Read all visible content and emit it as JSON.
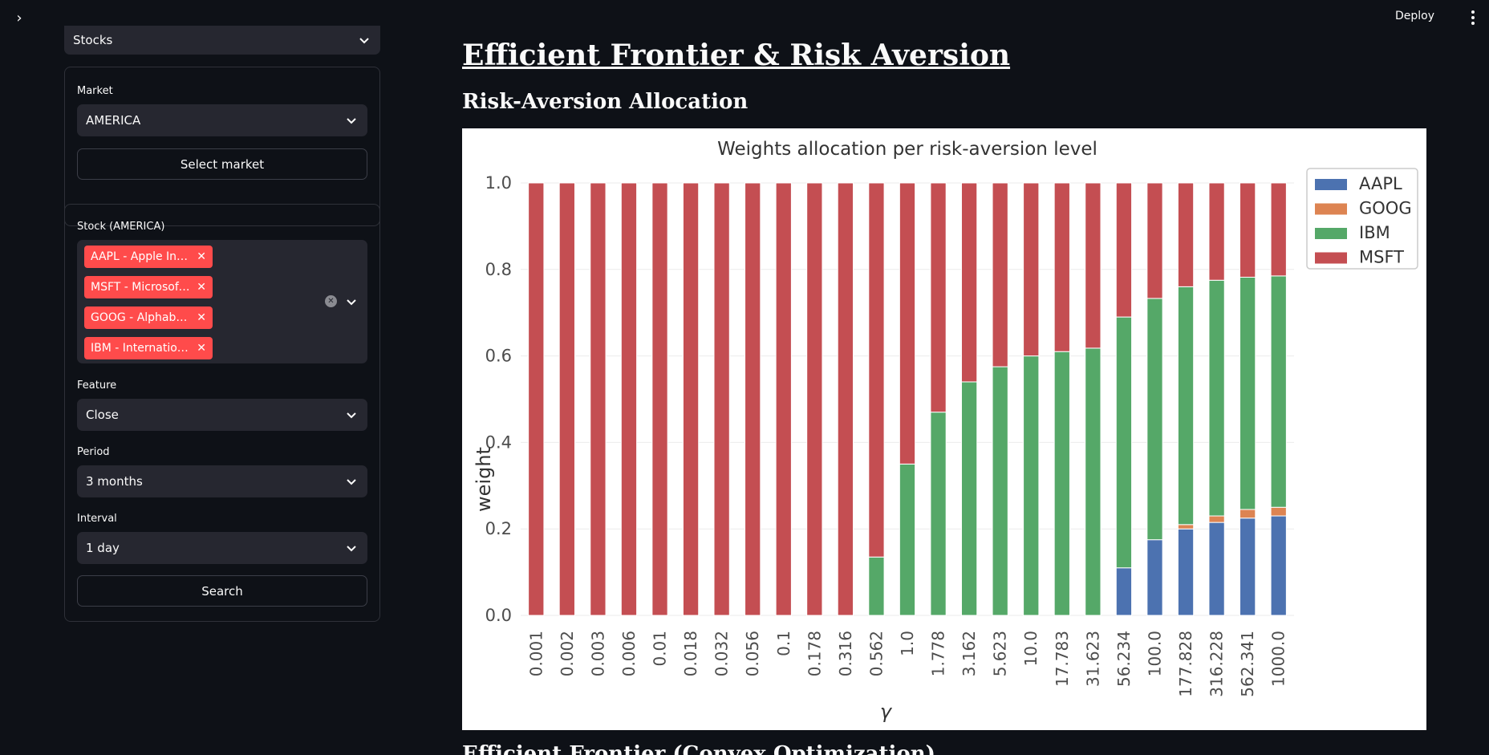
{
  "header": {
    "deploy_label": "Deploy"
  },
  "sidebar": {
    "category_select": {
      "value": "Stocks"
    },
    "market": {
      "label": "Market",
      "value": "AMERICA",
      "button": "Select market"
    },
    "stock": {
      "label": "Stock (AMERICA)",
      "tags": [
        "AAPL - Apple Inc.…",
        "MSFT - Microsoft…",
        "GOOG - Alphabe…",
        "IBM - Internation…"
      ]
    },
    "feature": {
      "label": "Feature",
      "value": "Close"
    },
    "period": {
      "label": "Period",
      "value": "3 months"
    },
    "interval": {
      "label": "Interval",
      "value": "1 day"
    },
    "search_button": "Search"
  },
  "main": {
    "title": "Efficient Frontier & Risk Aversion",
    "section1": "Risk-Aversion Allocation",
    "section2": "Efficient Frontier (Convex Optimization)"
  },
  "chart_data": {
    "type": "bar",
    "stacked": true,
    "title": "Weights allocation per risk-aversion level",
    "xlabel": "γ",
    "ylabel": "weight",
    "ylim": [
      0,
      1.0
    ],
    "yticks": [
      "0.0",
      "0.2",
      "0.4",
      "0.6",
      "0.8",
      "1.0"
    ],
    "legend_position": "top-right",
    "categories": [
      "0.001",
      "0.002",
      "0.003",
      "0.006",
      "0.01",
      "0.018",
      "0.032",
      "0.056",
      "0.1",
      "0.178",
      "0.316",
      "0.562",
      "1.0",
      "1.778",
      "3.162",
      "5.623",
      "10.0",
      "17.783",
      "31.623",
      "56.234",
      "100.0",
      "177.828",
      "316.228",
      "562.341",
      "1000.0"
    ],
    "series": [
      {
        "name": "AAPL",
        "color": "#4c72b0",
        "values": [
          0,
          0,
          0,
          0,
          0,
          0,
          0,
          0,
          0,
          0,
          0,
          0,
          0,
          0,
          0,
          0,
          0,
          0,
          0,
          0.11,
          0.175,
          0.2,
          0.215,
          0.225,
          0.23
        ]
      },
      {
        "name": "GOOG",
        "color": "#dd8452",
        "values": [
          0,
          0,
          0,
          0,
          0,
          0,
          0,
          0,
          0,
          0,
          0,
          0,
          0,
          0,
          0,
          0,
          0,
          0,
          0,
          0,
          0,
          0.01,
          0.015,
          0.02,
          0.02
        ]
      },
      {
        "name": "IBM",
        "color": "#55a868",
        "values": [
          0,
          0,
          0,
          0,
          0,
          0,
          0,
          0,
          0,
          0,
          0,
          0.135,
          0.35,
          0.47,
          0.54,
          0.575,
          0.6,
          0.61,
          0.618,
          0.58,
          0.558,
          0.55,
          0.545,
          0.537,
          0.535
        ]
      },
      {
        "name": "MSFT",
        "color": "#c44e52",
        "values": [
          1,
          1,
          1,
          1,
          1,
          1,
          1,
          1,
          1,
          1,
          1,
          0.865,
          0.65,
          0.53,
          0.46,
          0.425,
          0.4,
          0.39,
          0.382,
          0.31,
          0.267,
          0.24,
          0.225,
          0.218,
          0.215
        ]
      }
    ]
  }
}
